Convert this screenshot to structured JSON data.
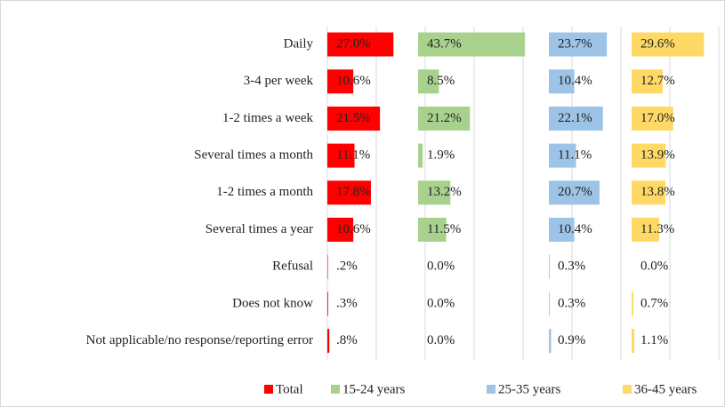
{
  "chart_data": {
    "type": "bar",
    "orientation": "horizontal",
    "categories": [
      "Daily",
      "3-4 per week",
      "1-2 times a week",
      "Several times a month",
      "1-2 times a month",
      "Several times a year",
      "Refusal",
      "Does not know",
      "Not applicable/no response/reporting error"
    ],
    "series": [
      {
        "name": "Total",
        "color": "#ff0000",
        "values": [
          27.0,
          10.6,
          21.5,
          11.1,
          17.8,
          10.6,
          0.2,
          0.3,
          0.8
        ],
        "value_labels": [
          "27.0%",
          "10.6%",
          "21.5%",
          "11.1%",
          "17.8%",
          "10.6%",
          ".2%",
          ".3%",
          ".8%"
        ]
      },
      {
        "name": "15-24 years",
        "color": "#a9d18e",
        "values": [
          43.7,
          8.5,
          21.2,
          1.9,
          13.2,
          11.5,
          0.0,
          0.0,
          0.0
        ],
        "value_labels": [
          "43.7%",
          "8.5%",
          "21.2%",
          "1.9%",
          "13.2%",
          "11.5%",
          "0.0%",
          "0.0%",
          "0.0%"
        ]
      },
      {
        "name": "25-35 years",
        "color": "#9dc3e6",
        "values": [
          23.7,
          10.4,
          22.1,
          11.1,
          20.7,
          10.4,
          0.3,
          0.3,
          0.9
        ],
        "value_labels": [
          "23.7%",
          "10.4%",
          "22.1%",
          "11.1%",
          "20.7%",
          "10.4%",
          "0.3%",
          "0.3%",
          "0.9%"
        ]
      },
      {
        "name": "36-45 years",
        "color": "#ffd966",
        "values": [
          29.6,
          12.7,
          17.0,
          13.9,
          13.8,
          11.3,
          0.0,
          0.7,
          1.1
        ],
        "value_labels": [
          "29.6%",
          "12.7%",
          "17.0%",
          "13.9%",
          "13.8%",
          "11.3%",
          "0.0%",
          "0.7%",
          "1.1%"
        ]
      }
    ],
    "legend": "bottom"
  }
}
